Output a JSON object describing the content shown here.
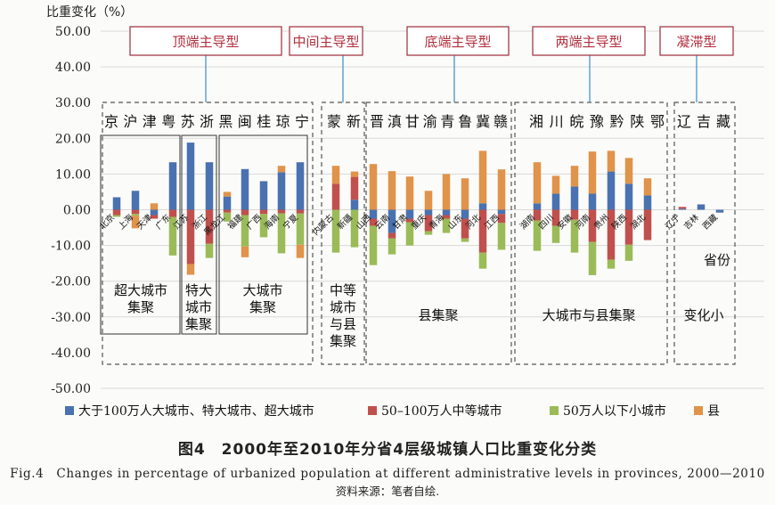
{
  "chart_data": {
    "type": "bar",
    "stacked": true,
    "ylabel": "比重变化（%）",
    "ylim": [
      -50,
      50
    ],
    "yticks": [
      "50.00",
      "40.00",
      "30.00",
      "20.00",
      "10.00",
      "0.00",
      "-10.00",
      "-20.00",
      "-30.00",
      "-40.00",
      "-50.00"
    ],
    "categories": [
      "北京",
      "上海",
      "天津",
      "广东",
      "江苏",
      "浙江",
      "黑龙江",
      "福建",
      "广西",
      "海南",
      "宁夏",
      "内蒙古",
      "新疆",
      "山西",
      "云南",
      "甘肃",
      "重庆",
      "青海",
      "山东",
      "河北",
      "江西",
      "湖南",
      "四川",
      "安徽",
      "河南",
      "贵州",
      "陕西",
      "湖北",
      "辽宁",
      "吉林",
      "西藏"
    ],
    "series": [
      {
        "name": "大于100万人大城市、特大城市、超大城市",
        "color": "#4a72b0",
        "values": [
          3.5,
          5.3,
          -1.5,
          13.3,
          18.8,
          13.3,
          3.7,
          11.4,
          8.0,
          10.5,
          13.3,
          0,
          2.8,
          -2.5,
          -6.5,
          -2.5,
          -1.5,
          -1.5,
          -2.5,
          1.8,
          -1.2,
          1.8,
          4.5,
          6.5,
          4.5,
          10.7,
          7.3,
          4.0,
          0.3,
          1.5,
          -0.8
        ]
      },
      {
        "name": "50–100万人中等城市",
        "color": "#c0504d",
        "values": [
          -1.5,
          -1.2,
          -1.0,
          -2.0,
          -15.2,
          -9.5,
          -0.8,
          -1.5,
          -1.2,
          -1.0,
          -1.0,
          7.3,
          6.4,
          -2.0,
          -1.5,
          -1.0,
          -4.5,
          -1.0,
          -5.5,
          -12.0,
          -2.5,
          -3.0,
          -4.5,
          -2.8,
          -9.0,
          -14.0,
          -9.8,
          -8.5,
          0.5,
          0,
          0
        ]
      },
      {
        "name": "50万人以下小城市",
        "color": "#9bbb59",
        "values": [
          -0.5,
          -0.5,
          0,
          -10.8,
          0,
          -4.0,
          -2.5,
          -8.8,
          -6.5,
          -11.2,
          -8.8,
          -12.0,
          -10.5,
          -11.0,
          -4.5,
          -6.5,
          -1.0,
          -4.0,
          -1.0,
          -4.5,
          -7.5,
          -8.5,
          -4.8,
          -9.2,
          -9.3,
          -2.5,
          -4.5,
          0,
          0,
          0,
          0
        ]
      },
      {
        "name": "县",
        "color": "#e0934a",
        "values": [
          0,
          -3.5,
          1.8,
          0,
          -3.0,
          0,
          1.3,
          -3.0,
          0,
          1.8,
          -3.7,
          5.0,
          1.5,
          12.8,
          10.8,
          9.3,
          5.3,
          10.0,
          8.8,
          14.7,
          11.3,
          11.5,
          5.0,
          5.8,
          11.8,
          5.8,
          7.2,
          4.8,
          0,
          0,
          0
        ]
      }
    ]
  },
  "group_labels": [
    "顶端主导型",
    "中间主导型",
    "底端主导型",
    "两端主导型",
    "凝滞型"
  ],
  "province_rows": [
    "京沪津粤苏浙黑闽桂琼宁",
    "蒙新",
    "晋滇甘渝青鲁冀赣",
    "湘川皖豫黔陕鄂",
    "辽吉藏"
  ],
  "cluster_labels": [
    "超大城市集聚",
    "特大城市集聚",
    "大城市集聚",
    "中等城市与县集聚",
    "县集聚",
    "大城市与县集聚",
    "变化小"
  ],
  "extra_note": "省份",
  "legend": [
    "大于100万人大城市、特大城市、超大城市",
    "50–100万人中等城市",
    "50万人以下小城市",
    "县"
  ],
  "figure": {
    "title": "图4　2000年至2010年分省4层级城镇人口比重变化分类",
    "caption_en": "Fig.4　Changes in percentage of urbanized population at different administrative levels in provinces, 2000—2010",
    "source": "资料来源：笔者自绘."
  }
}
